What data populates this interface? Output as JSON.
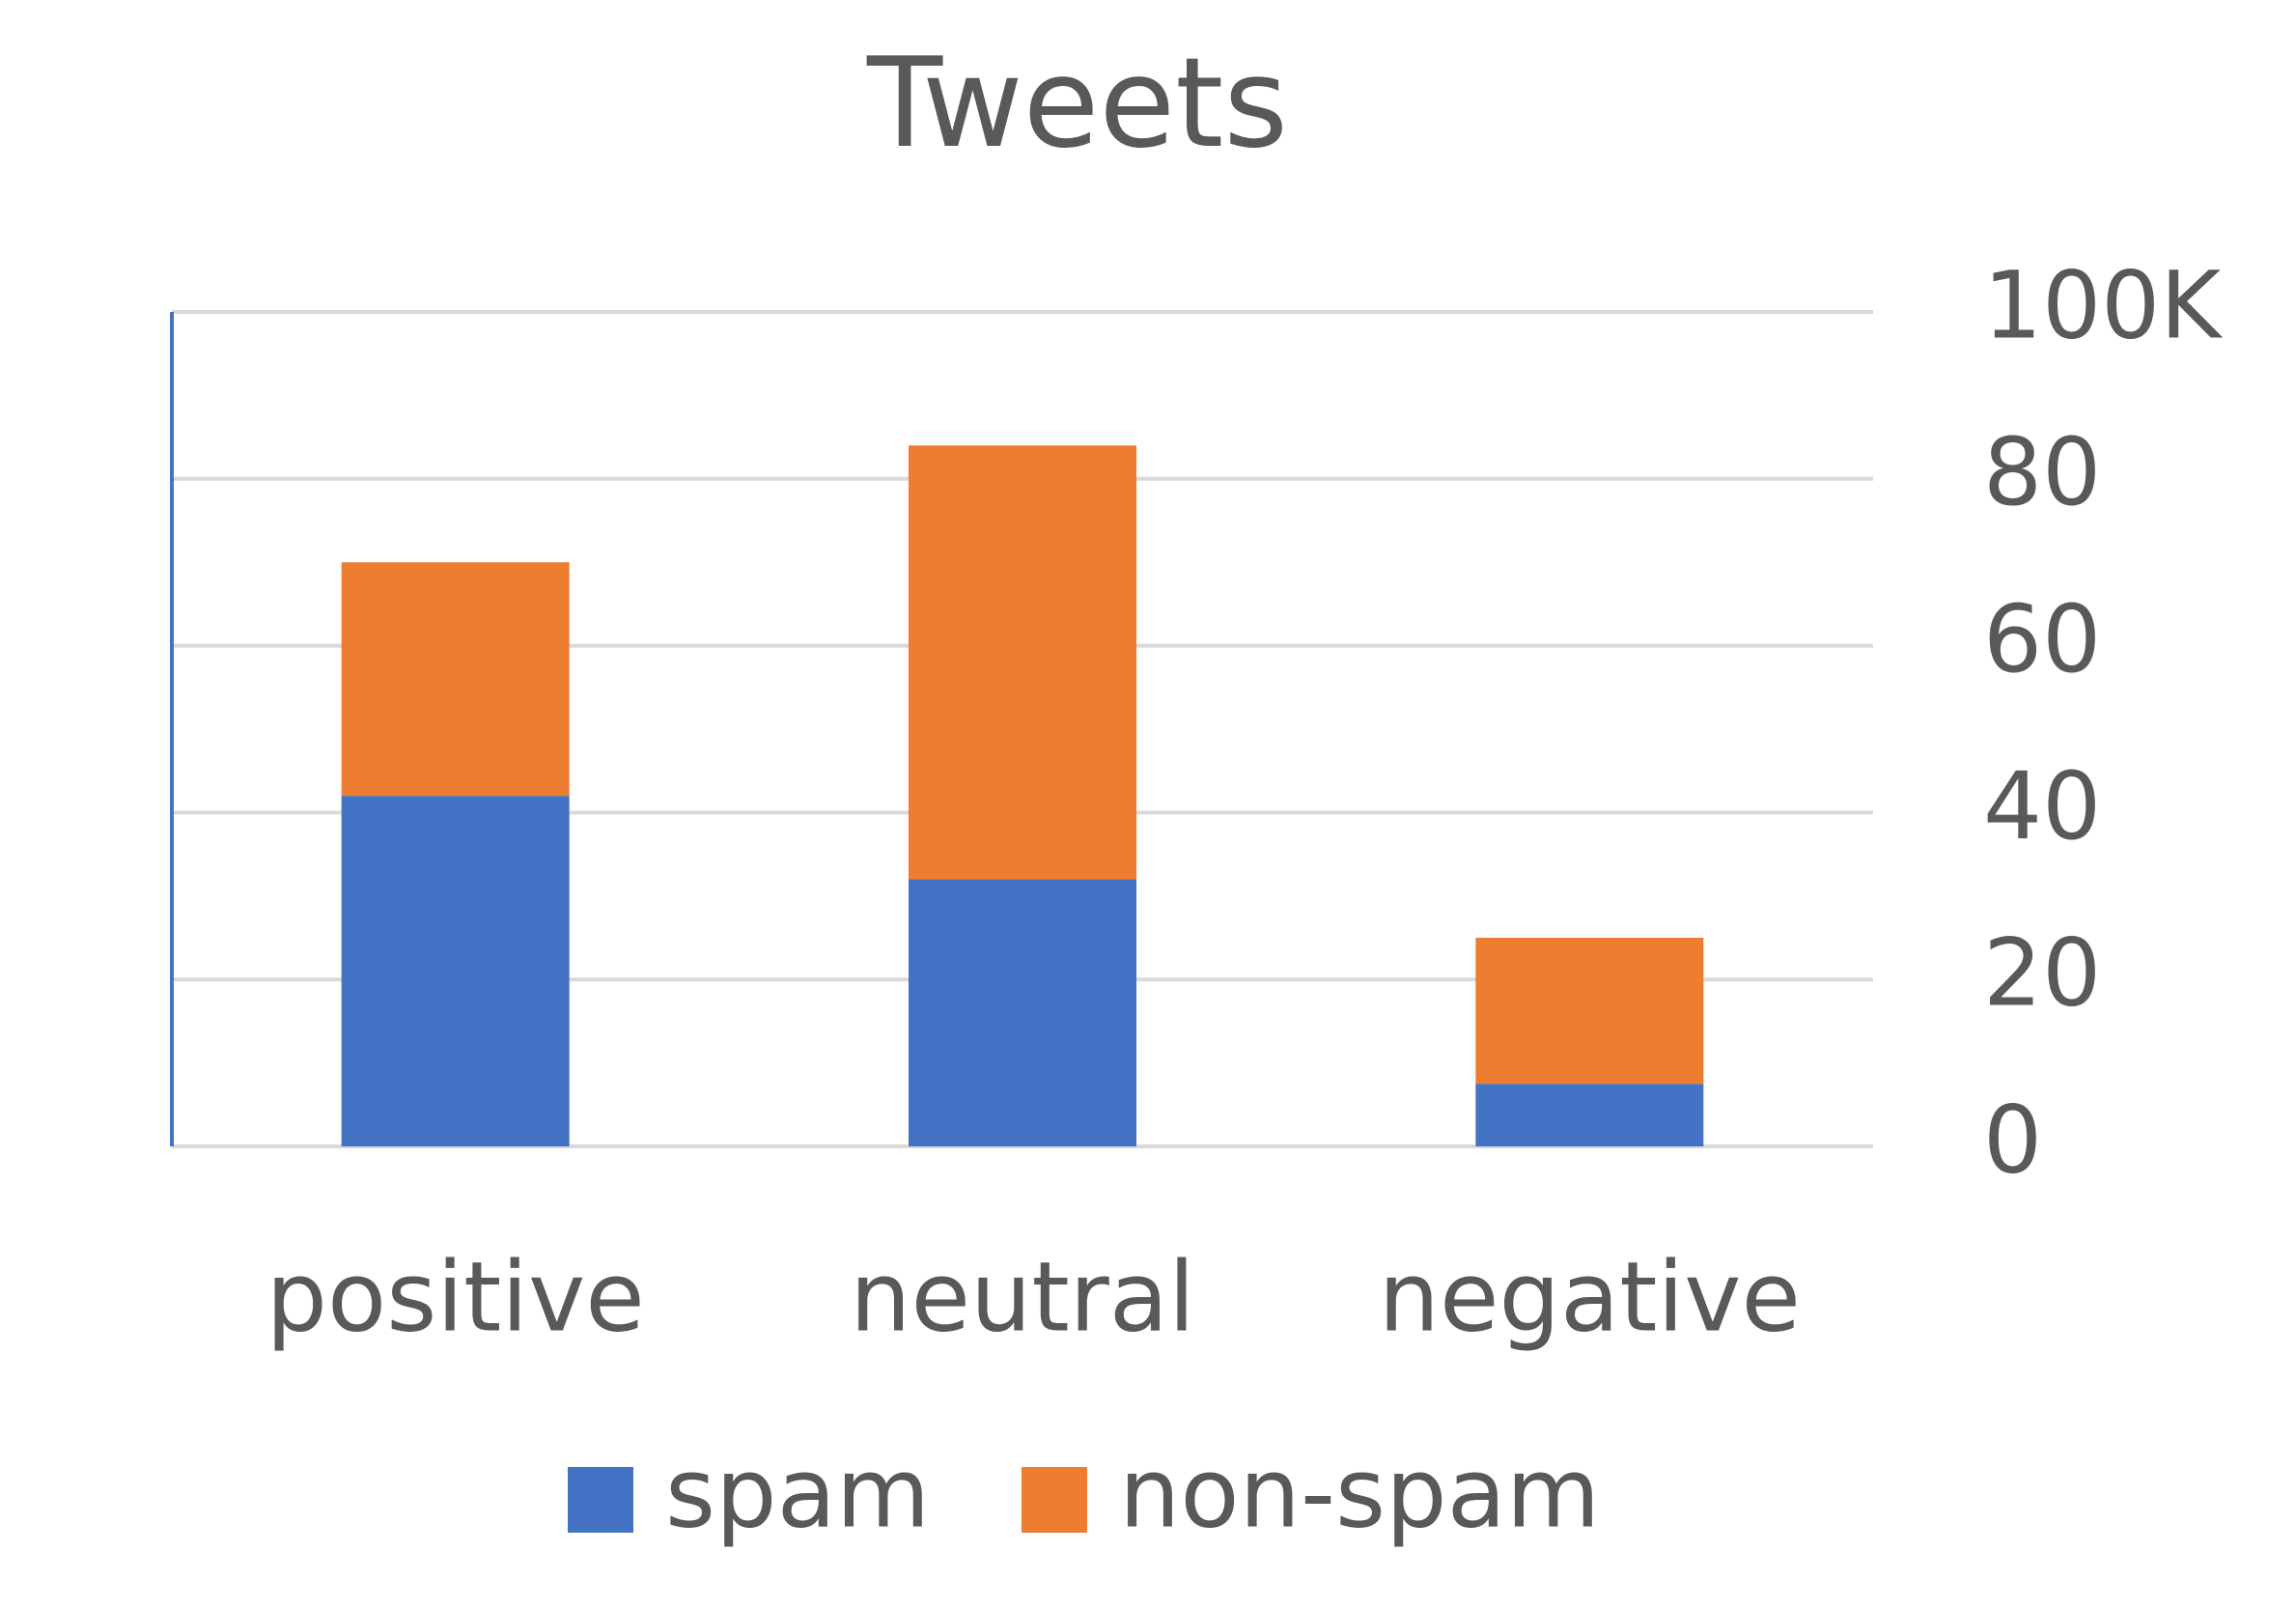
{
  "chart_data": {
    "type": "stacked_bar",
    "title": "Tweets",
    "categories": [
      "positive",
      "neutral",
      "negative"
    ],
    "series": [
      {
        "name": "spam",
        "color": "#4472c4",
        "values": [
          42,
          32,
          7.5
        ]
      },
      {
        "name": "non-spam",
        "color": "#ed7d31",
        "values": [
          28,
          52,
          17.5
        ]
      }
    ],
    "ylim": [
      0,
      100
    ],
    "yticks": [
      0,
      20,
      40,
      60,
      80,
      {
        "value": 100,
        "label": "100K"
      }
    ],
    "grid": true,
    "y_axis_side": "right",
    "legend": "bottom"
  }
}
